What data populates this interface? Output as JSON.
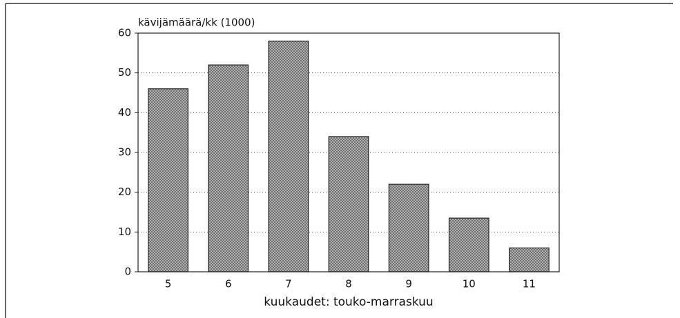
{
  "chart_data": {
    "type": "bar",
    "y_label": "kävijämäärä/kk (1000)",
    "x_label": "kuukaudet: touko-marraskuu",
    "categories": [
      "5",
      "6",
      "7",
      "8",
      "9",
      "10",
      "11"
    ],
    "values": [
      46,
      52,
      58,
      34,
      22,
      13.5,
      6
    ],
    "color": "#9c9c9c",
    "ylim": [
      0,
      60
    ],
    "yticks": [
      0,
      10,
      20,
      30,
      40,
      50,
      60
    ],
    "grid": true
  }
}
